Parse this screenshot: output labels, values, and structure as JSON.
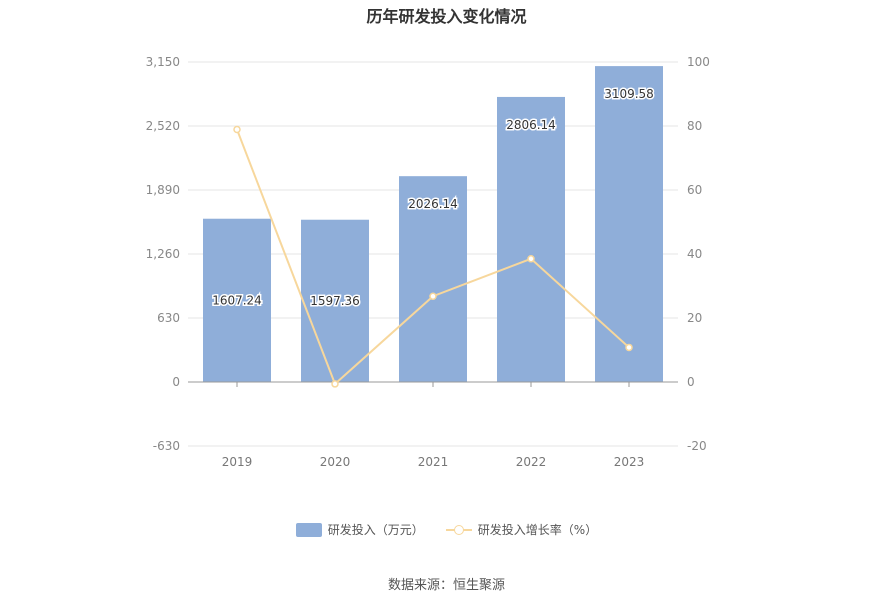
{
  "chart_data": {
    "type": "bar",
    "title": "历年研发投入变化情况",
    "categories": [
      "2019",
      "2020",
      "2021",
      "2022",
      "2023"
    ],
    "series": [
      {
        "name": "研发投入（万元）",
        "type": "bar",
        "axis": "left",
        "values": [
          1607.24,
          1597.36,
          2026.14,
          2806.14,
          3109.58
        ],
        "color": "#8faed9"
      },
      {
        "name": "研发投入增长率（%）",
        "type": "line",
        "axis": "right",
        "values": [
          78.9,
          -0.6,
          26.8,
          38.5,
          10.8
        ],
        "color": "#f7d79c"
      }
    ],
    "y_left": {
      "ticks": [
        "-630",
        "0",
        "630",
        "1,260",
        "1,890",
        "2,520",
        "3,150"
      ],
      "min": -630,
      "max": 3150
    },
    "y_right": {
      "ticks": [
        "-20",
        "0",
        "20",
        "40",
        "60",
        "80",
        "100"
      ],
      "min": -20,
      "max": 100
    },
    "grid": true,
    "legend_position": "bottom"
  },
  "source_note": "数据来源：恒生聚源"
}
